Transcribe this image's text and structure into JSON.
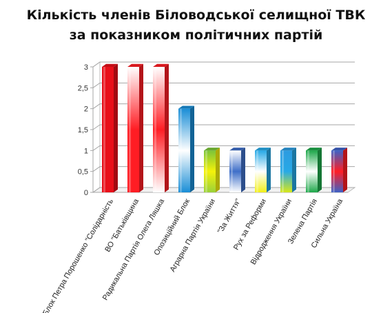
{
  "chart_data": {
    "type": "bar",
    "title": [
      "Кількість членів Біловодської селищної ТВК",
      "за показником політичних партій"
    ],
    "xlabel": "",
    "ylabel": "",
    "ylim": [
      0,
      3
    ],
    "yticks": [
      "0",
      "0,5",
      "1",
      "1,5",
      "2",
      "2,5",
      "3"
    ],
    "grid": true,
    "legend": "none",
    "categories": [
      "Блок Петра Порошенко \"Солідарність",
      "ВО \"Батьківщина",
      "Радикальна Партія Олега Ляшка",
      "Опозиційний Блок",
      "Аграрна Партія України",
      "\"За Життя\"",
      "Рух за Реформи",
      "Відродження України",
      "Зелена Партія",
      "Сильна Україна"
    ],
    "values": [
      3,
      3,
      3,
      2,
      1,
      1,
      1,
      1,
      1,
      1
    ],
    "bar_colors": [
      [
        "#e8101a",
        "#e8101a",
        "#e8101a"
      ],
      [
        "#ffffff",
        "#ff1d24",
        "#ff1d24"
      ],
      [
        "#ffffff",
        "#ff1d24",
        "#ffffff"
      ],
      [
        "#1a8ed6",
        "#ffffff",
        "#1a8ed6"
      ],
      [
        "#7cc43a",
        "#f4f20a",
        "#9ad13a"
      ],
      [
        "#ffffff",
        "#3f6fc8",
        "#ffffff"
      ],
      [
        "#27a9e6",
        "#ffffff",
        "#f2ef1a"
      ],
      [
        "#2d9be0",
        "#27a9e6",
        "#d7e81a"
      ],
      [
        "#1ea84a",
        "#ffffff",
        "#1ea84a"
      ],
      [
        "#3e62c6",
        "#ff1d24",
        "#3e62c6"
      ]
    ]
  }
}
